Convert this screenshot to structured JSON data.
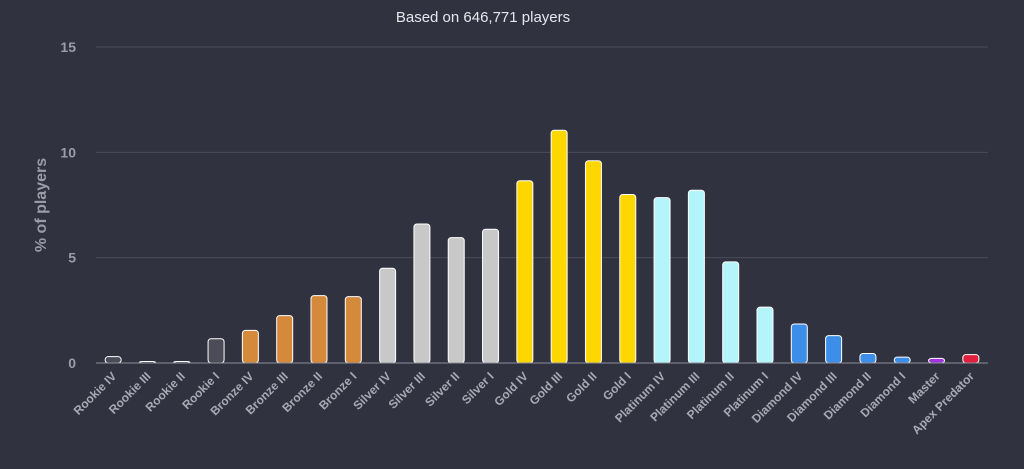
{
  "chart_data": {
    "type": "bar",
    "title": "",
    "subtitle": "Based on 646,771 players",
    "xlabel": "",
    "ylabel": "% of players",
    "ylim": [
      0,
      15
    ],
    "yticks": [
      0,
      5,
      10,
      15
    ],
    "grid": true,
    "legend": "none",
    "categories": [
      "Rookie IV",
      "Rookie III",
      "Rookie II",
      "Rookie I",
      "Bronze IV",
      "Bronze III",
      "Bronze II",
      "Bronze I",
      "Silver IV",
      "Silver III",
      "Silver II",
      "Silver I",
      "Gold IV",
      "Gold III",
      "Gold II",
      "Gold I",
      "Platinum IV",
      "Platinum III",
      "Platinum II",
      "Platinum I",
      "Diamond IV",
      "Diamond III",
      "Diamond II",
      "Diamond I",
      "Master",
      "Apex Predator"
    ],
    "values": [
      0.3,
      0.05,
      0.05,
      1.15,
      1.55,
      2.25,
      3.2,
      3.15,
      4.5,
      6.6,
      5.95,
      6.35,
      8.65,
      11.05,
      9.6,
      8.0,
      7.85,
      8.2,
      4.8,
      2.65,
      1.85,
      1.3,
      0.45,
      0.28,
      0.22,
      0.4
    ],
    "colors": [
      "#4b4c57",
      "#4b4c57",
      "#4b4c57",
      "#4b4c57",
      "#d5893a",
      "#d5893a",
      "#d5893a",
      "#d5893a",
      "#c8c8c8",
      "#c8c8c8",
      "#c8c8c8",
      "#c8c8c8",
      "#ffd700",
      "#ffd700",
      "#ffd700",
      "#ffd700",
      "#b3f5fb",
      "#b3f5fb",
      "#b3f5fb",
      "#b3f5fb",
      "#3d8ee8",
      "#3d8ee8",
      "#3d8ee8",
      "#3d8ee8",
      "#a234e0",
      "#e0203c"
    ],
    "background": "#30323f"
  }
}
